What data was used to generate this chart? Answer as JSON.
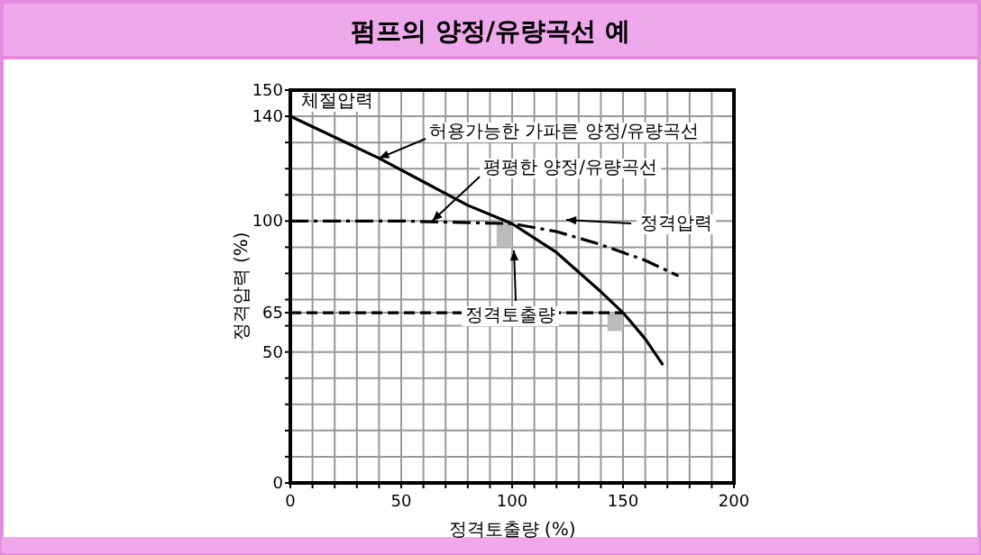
{
  "chart_data": {
    "type": "line",
    "title": "펌프의 양정/유량곡선 예",
    "xlabel": "정격토출량 (%)",
    "ylabel": "정격압력 (%)",
    "xlim": [
      0,
      200
    ],
    "ylim": [
      0,
      150
    ],
    "xticks": [
      0,
      {
        "value": 10,
        "label": null
      },
      {
        "value": 20,
        "label": null
      },
      {
        "value": 30,
        "label": null
      },
      {
        "value": 40,
        "label": null
      },
      50,
      {
        "value": 60,
        "label": null
      },
      {
        "value": 70,
        "label": null
      },
      {
        "value": 80,
        "label": null
      },
      {
        "value": 90,
        "label": null
      },
      100,
      {
        "value": 110,
        "label": null
      },
      {
        "value": 120,
        "label": null
      },
      {
        "value": 130,
        "label": null
      },
      {
        "value": 140,
        "label": null
      },
      150,
      {
        "value": 160,
        "label": null
      },
      {
        "value": 170,
        "label": null
      },
      {
        "value": 180,
        "label": null
      },
      {
        "value": 190,
        "label": null
      },
      200
    ],
    "yticks": [
      0,
      {
        "value": 10,
        "label": null
      },
      {
        "value": 20,
        "label": null
      },
      {
        "value": 30,
        "label": null
      },
      {
        "value": 40,
        "label": null
      },
      50,
      {
        "value": 60,
        "label": null
      },
      65,
      {
        "value": 70,
        "label": null
      },
      {
        "value": 80,
        "label": null
      },
      {
        "value": 90,
        "label": null
      },
      100,
      {
        "value": 110,
        "label": null
      },
      {
        "value": 120,
        "label": null
      },
      {
        "value": 130,
        "label": null
      },
      140,
      150
    ],
    "grid": true,
    "series": [
      {
        "color": "#000000",
        "line_style": "solid",
        "x": [
          0,
          20,
          40,
          60,
          80,
          100,
          120,
          140,
          150,
          160,
          168
        ],
        "values": [
          140,
          132,
          124,
          115,
          106,
          99,
          88,
          73,
          65,
          55,
          45
        ]
      },
      {
        "color": "#000000",
        "line_style": "dashdot",
        "x": [
          0,
          50,
          100,
          120,
          140,
          160,
          175
        ],
        "values": [
          100,
          100,
          99,
          96,
          91,
          85,
          79
        ]
      },
      {
        "color": "#000000",
        "line_style": "dashed",
        "x": [
          0,
          150
        ],
        "values": [
          65,
          65
        ]
      }
    ],
    "annotations": [
      "체절압력",
      {
        "text": "허용가능한 가파른 양정/유량곡선",
        "x": 40,
        "y": 124
      },
      {
        "text": "평평한 양정/유량곡선",
        "x": 64,
        "y": 100
      },
      "정격압력",
      "정격토출량"
    ]
  }
}
